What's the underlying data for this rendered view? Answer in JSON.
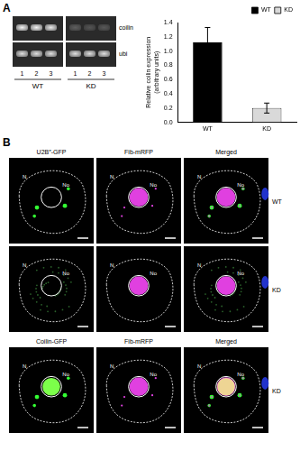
{
  "chart_data": {
    "type": "bar",
    "categories": [
      "WT",
      "KD"
    ],
    "series": [
      {
        "name": "WT",
        "color": "#000000",
        "values": [
          1.12,
          null
        ],
        "errors": [
          0.21,
          null
        ]
      },
      {
        "name": "KD",
        "color": "#d9d9d9",
        "values": [
          null,
          0.2
        ],
        "errors": [
          null,
          0.07
        ]
      }
    ],
    "ylabel": [
      "Relative coilin expression",
      "(arbitrary units)"
    ],
    "ylim": [
      0,
      1.4
    ],
    "yticks": [
      {
        "value": 0,
        "label": "0.0"
      },
      0.2,
      0.4,
      0.6,
      0.8,
      {
        "value": 1,
        "label": "1.0"
      },
      1.2,
      1.4
    ],
    "legend": "top-right",
    "grid": false
  },
  "figure": {
    "panel_a": {
      "label": "A",
      "gel": {
        "rows": [
          "coilin",
          "ubi"
        ],
        "lanes": [
          "1",
          "2",
          "3"
        ],
        "groups": [
          "WT",
          "KD"
        ]
      }
    },
    "panel_b": {
      "label": "B",
      "blocks": [
        {
          "headers": [
            "U2B″-GFP",
            "Fib-mRFP",
            "Merged"
          ],
          "rows": [
            "WT",
            "KD"
          ]
        },
        {
          "headers": [
            "Coilin-GFP",
            "Fib-mRFP",
            "Merged"
          ],
          "rows": [
            "KD"
          ]
        }
      ],
      "nucleus_label": "N",
      "nucleolus_label": "No"
    }
  }
}
